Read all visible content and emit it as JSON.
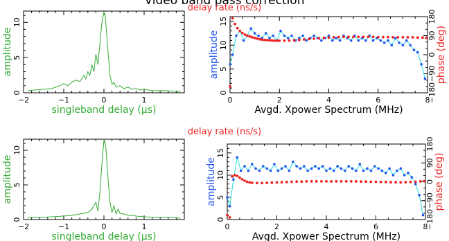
{
  "figure": {
    "title": "Video band pass correction",
    "colors": {
      "green": "#33aa33",
      "red": "#ee2222",
      "blue": "#2255ee",
      "cyan": "#22dddd",
      "axis": "#000000"
    }
  },
  "chart_data": [
    {
      "id": "delay-top",
      "type": "line",
      "xlabel": "singleband delay (μs)",
      "ylabel": "amplitude",
      "xlim": [
        -2,
        2
      ],
      "ylim": [
        0,
        11.6
      ],
      "xticks": [
        -2,
        -1,
        0,
        1
      ],
      "yticks": [
        0,
        5,
        10
      ],
      "series": [
        {
          "color": "#33aa33",
          "x": [
            -1.9,
            -1.7,
            -1.5,
            -1.3,
            -1.2,
            -1.1,
            -1.0,
            -0.9,
            -0.8,
            -0.7,
            -0.6,
            -0.55,
            -0.5,
            -0.45,
            -0.4,
            -0.35,
            -0.3,
            -0.25,
            -0.2,
            -0.15,
            -0.1,
            -0.05,
            0.0,
            0.03,
            0.06,
            0.1,
            0.15,
            0.2,
            0.25,
            0.3,
            0.4,
            0.5,
            0.6,
            0.7,
            0.8,
            0.9,
            1.0,
            1.2,
            1.5,
            1.9
          ],
          "y": [
            0.3,
            0.4,
            0.5,
            0.6,
            0.8,
            1.0,
            1.3,
            1.0,
            1.5,
            1.8,
            1.6,
            2.0,
            2.5,
            2.0,
            3.0,
            2.5,
            4.0,
            3.0,
            5.5,
            4.0,
            7.0,
            10.0,
            11.4,
            11.0,
            9.0,
            6.0,
            2.5,
            1.2,
            1.5,
            0.8,
            1.0,
            0.6,
            0.8,
            0.5,
            0.6,
            0.4,
            0.5,
            0.3,
            0.3,
            0.2
          ]
        }
      ]
    },
    {
      "id": "spectrum-top",
      "type": "scatter",
      "xlabel": "Avgd. Xpower Spectrum (MHz)",
      "ylabel": "amplitude",
      "y2label": "phase (deg)",
      "top_label": "delay rate (ns/s)",
      "xlim": [
        0,
        8
      ],
      "ylim": [
        0,
        16
      ],
      "y2lim": [
        -180,
        180
      ],
      "xticks": [
        0,
        2,
        4,
        6,
        8
      ],
      "yticks": [
        0,
        5,
        10,
        15
      ],
      "y2ticks": [
        -180,
        -90,
        0,
        90,
        180
      ],
      "series": [
        {
          "name": "amplitude",
          "color": "#2255ee",
          "line_color": "#22dddd",
          "x": [
            0.0,
            0.1,
            0.25,
            0.4,
            0.55,
            0.7,
            0.85,
            1.0,
            1.15,
            1.3,
            1.45,
            1.6,
            1.75,
            1.9,
            2.05,
            2.2,
            2.35,
            2.5,
            2.65,
            2.8,
            2.95,
            3.1,
            3.25,
            3.4,
            3.55,
            3.7,
            3.85,
            4.0,
            4.15,
            4.3,
            4.45,
            4.6,
            4.75,
            4.9,
            5.05,
            5.2,
            5.35,
            5.5,
            5.65,
            5.8,
            5.95,
            6.1,
            6.25,
            6.4,
            6.55,
            6.7,
            6.85,
            7.0,
            7.15,
            7.3,
            7.45,
            7.6,
            7.75,
            7.9
          ],
          "y": [
            6.0,
            8.0,
            12.0,
            13.0,
            11.0,
            12.0,
            13.5,
            12.5,
            12.0,
            11.5,
            12.5,
            11.5,
            12.0,
            11.0,
            13.0,
            12.0,
            11.5,
            12.0,
            11.0,
            11.5,
            12.0,
            11.0,
            11.5,
            12.0,
            11.5,
            11.0,
            11.5,
            12.0,
            11.0,
            11.5,
            11.0,
            12.0,
            11.5,
            11.0,
            12.0,
            11.0,
            11.5,
            11.0,
            12.0,
            11.0,
            11.5,
            11.0,
            10.5,
            11.0,
            10.0,
            11.5,
            10.5,
            10.0,
            11.0,
            10.0,
            9.0,
            8.5,
            6.0,
            3.0
          ]
        },
        {
          "name": "phase",
          "color": "#ee2222",
          "x": [
            0.0,
            0.1,
            0.2,
            0.3,
            0.4,
            0.5,
            0.6,
            0.7,
            0.8,
            0.9,
            1.0,
            1.1,
            1.2,
            1.3,
            1.4,
            1.5,
            1.6,
            1.7,
            1.8,
            1.9,
            2.0,
            2.2,
            2.4,
            2.6,
            2.8,
            3.0,
            3.2,
            3.4,
            3.6,
            3.8,
            4.0,
            4.2,
            4.4,
            4.6,
            4.8,
            5.0,
            5.2,
            5.4,
            5.6,
            5.8,
            6.0,
            6.2,
            6.4,
            6.6,
            6.8,
            7.0,
            7.2,
            7.4,
            7.6,
            7.8,
            7.95
          ],
          "y": [
            -150,
            172,
            145,
            125,
            112,
            103,
            95,
            90,
            86,
            82,
            79,
            76,
            73,
            71,
            70,
            69,
            68,
            67,
            66,
            66,
            66,
            66,
            67,
            68,
            70,
            72,
            74,
            76,
            78,
            80,
            81,
            82,
            83,
            84,
            84,
            84,
            84,
            84,
            84,
            84,
            83,
            83,
            83,
            82,
            82,
            82,
            82,
            82,
            81,
            81,
            80
          ]
        }
      ]
    },
    {
      "id": "delay-bottom",
      "type": "line",
      "xlabel": "singleband delay (μs)",
      "ylabel": "amplitude",
      "xlim": [
        -2,
        2
      ],
      "ylim": [
        0,
        11.6
      ],
      "xticks": [
        -2,
        -1,
        0,
        1
      ],
      "yticks": [
        0,
        5,
        10
      ],
      "series": [
        {
          "color": "#33aa33",
          "x": [
            -1.9,
            -1.6,
            -1.3,
            -1.0,
            -0.8,
            -0.6,
            -0.4,
            -0.3,
            -0.2,
            -0.15,
            -0.1,
            -0.05,
            0.0,
            0.03,
            0.06,
            0.1,
            0.15,
            0.2,
            0.25,
            0.3,
            0.35,
            0.4,
            0.5,
            0.6,
            0.7,
            0.8,
            1.0,
            1.3,
            1.6,
            1.9
          ],
          "y": [
            0.3,
            0.3,
            0.4,
            0.5,
            0.6,
            0.8,
            1.0,
            1.5,
            2.5,
            1.2,
            4.0,
            8.0,
            11.5,
            11.2,
            9.5,
            6.0,
            2.5,
            1.0,
            2.0,
            0.8,
            1.5,
            0.9,
            0.8,
            0.6,
            0.6,
            0.5,
            0.4,
            0.3,
            0.3,
            0.2
          ]
        }
      ]
    },
    {
      "id": "spectrum-bottom",
      "type": "scatter",
      "xlabel": "Avgd. Xpower Spectrum (MHz)",
      "ylabel": "amplitude",
      "y2label": "phase (deg)",
      "top_label": "delay rate (ns/s)",
      "xlim": [
        0,
        8
      ],
      "ylim": [
        0,
        17
      ],
      "y2lim": [
        -180,
        180
      ],
      "xticks": [
        0,
        2,
        4,
        6,
        8
      ],
      "yticks": [
        0,
        5,
        10,
        15
      ],
      "y2ticks": [
        -180,
        -90,
        0,
        90,
        180
      ],
      "series": [
        {
          "name": "amplitude",
          "color": "#2255ee",
          "line_color": "#22dddd",
          "x": [
            0.0,
            0.1,
            0.25,
            0.4,
            0.55,
            0.7,
            0.85,
            1.0,
            1.15,
            1.3,
            1.45,
            1.6,
            1.75,
            1.9,
            2.05,
            2.2,
            2.35,
            2.5,
            2.65,
            2.8,
            2.95,
            3.1,
            3.25,
            3.4,
            3.55,
            3.7,
            3.85,
            4.0,
            4.15,
            4.3,
            4.45,
            4.6,
            4.75,
            4.9,
            5.05,
            5.2,
            5.35,
            5.5,
            5.65,
            5.8,
            5.95,
            6.1,
            6.25,
            6.4,
            6.55,
            6.7,
            6.85,
            7.0,
            7.15,
            7.3,
            7.45,
            7.6,
            7.75,
            7.9
          ],
          "y": [
            5.0,
            3.0,
            9.0,
            14.0,
            11.0,
            12.0,
            11.0,
            12.5,
            11.5,
            11.0,
            12.0,
            11.5,
            11.0,
            12.5,
            11.0,
            11.5,
            12.0,
            11.0,
            13.0,
            12.0,
            11.5,
            12.0,
            11.0,
            11.5,
            12.0,
            11.5,
            12.0,
            11.0,
            11.5,
            11.0,
            12.0,
            11.5,
            11.0,
            12.0,
            11.5,
            11.0,
            12.5,
            11.0,
            11.5,
            11.0,
            12.0,
            11.5,
            11.0,
            10.5,
            11.5,
            10.0,
            11.0,
            11.5,
            10.0,
            10.5,
            9.5,
            8.0,
            5.5,
            1.0
          ]
        },
        {
          "name": "phase",
          "color": "#ee2222",
          "x": [
            0.0,
            0.1,
            0.2,
            0.3,
            0.4,
            0.5,
            0.6,
            0.7,
            0.8,
            0.9,
            1.0,
            1.2,
            1.4,
            1.6,
            1.8,
            2.0,
            2.2,
            2.4,
            2.6,
            2.8,
            3.0,
            3.2,
            3.4,
            3.6,
            3.8,
            4.0,
            4.2,
            4.4,
            4.6,
            4.8,
            5.0,
            5.2,
            5.4,
            5.6,
            5.8,
            6.0,
            6.2,
            6.4,
            6.6,
            6.8,
            7.0,
            7.2,
            7.4,
            7.6,
            7.8,
            7.95
          ],
          "y": [
            -160,
            -170,
            25,
            32,
            28,
            20,
            12,
            5,
            0,
            -3,
            -5,
            -6,
            -6,
            -5,
            -4,
            -3,
            -2,
            -1,
            0,
            1,
            1,
            2,
            2,
            2,
            2,
            2,
            2,
            2,
            2,
            2,
            2,
            2,
            1,
            1,
            0,
            0,
            -1,
            -1,
            -2,
            -2,
            -3,
            -2,
            -1,
            0,
            2,
            3
          ]
        }
      ]
    }
  ]
}
